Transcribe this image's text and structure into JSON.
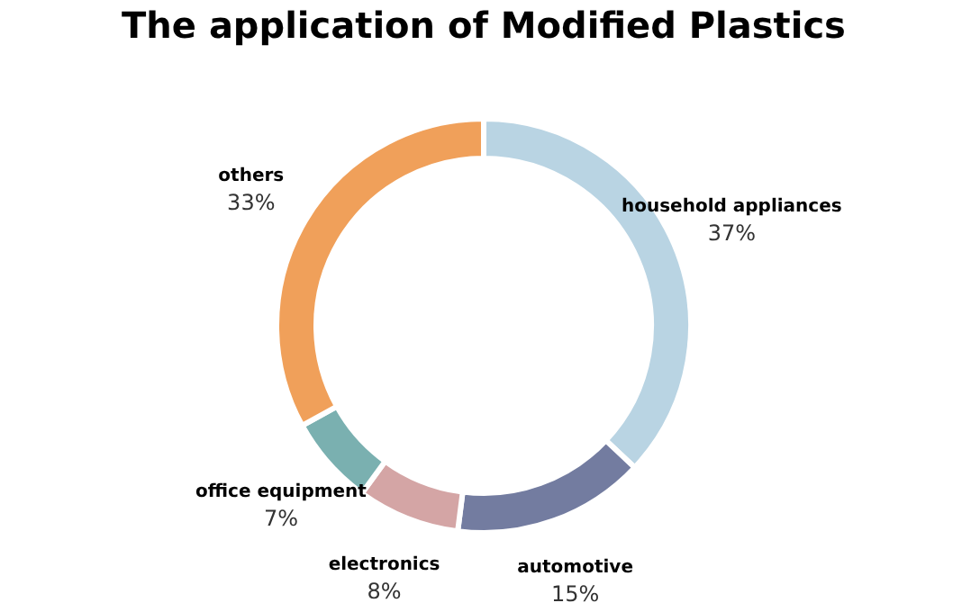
{
  "chart_data": {
    "type": "donut",
    "title": "The application of Modified Plastics",
    "categories": [
      "household appliances",
      "automotive",
      "electronics",
      "office equipment",
      "others"
    ],
    "values": [
      37,
      15,
      8,
      7,
      33
    ],
    "value_labels": [
      "37%",
      "15%",
      "8%",
      "7%",
      "33%"
    ],
    "colors": [
      "#b9d4e3",
      "#737ca0",
      "#d4a5a5",
      "#7ab0b0",
      "#f0a05a"
    ],
    "legend": false
  }
}
